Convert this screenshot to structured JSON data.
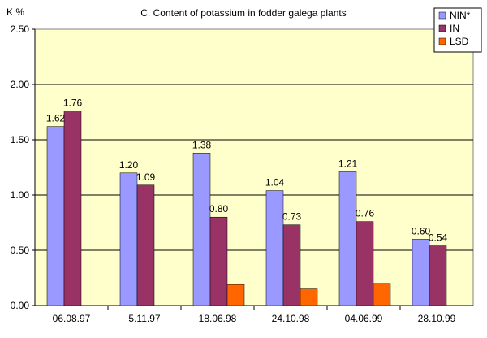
{
  "chart_data": {
    "type": "bar",
    "title": "C. Content of potassium in fodder galega plants",
    "ylabel": "K %",
    "xlabel": "",
    "ylim": [
      0,
      2.5
    ],
    "yticks": [
      "0.00",
      "0.50",
      "1.00",
      "1.50",
      "2.00",
      "2.50"
    ],
    "grid": true,
    "legend_position": "top-right",
    "categories": [
      "06.08.97",
      "5.11.97",
      "18.06.98",
      "24.10.98",
      "04.06.99",
      "28.10.99"
    ],
    "series": [
      {
        "name": "NIN*",
        "color": "#9999ff",
        "values": [
          1.62,
          1.2,
          1.38,
          1.04,
          1.21,
          0.6
        ],
        "labels": [
          "1.62",
          "1.20",
          "1.38",
          "1.04",
          "1.21",
          "0.60"
        ]
      },
      {
        "name": "IN",
        "color": "#993366",
        "values": [
          1.76,
          1.09,
          0.8,
          0.73,
          0.76,
          0.54
        ],
        "labels": [
          "1.76",
          "1.09",
          "0.80",
          "0.73",
          "0.76",
          "0.54"
        ]
      },
      {
        "name": "LSD",
        "color": "#ff6600",
        "values": [
          null,
          null,
          0.19,
          0.15,
          0.2,
          null
        ],
        "labels": [
          null,
          null,
          null,
          null,
          null,
          null
        ]
      }
    ],
    "plot_background": "#ffffcc"
  }
}
